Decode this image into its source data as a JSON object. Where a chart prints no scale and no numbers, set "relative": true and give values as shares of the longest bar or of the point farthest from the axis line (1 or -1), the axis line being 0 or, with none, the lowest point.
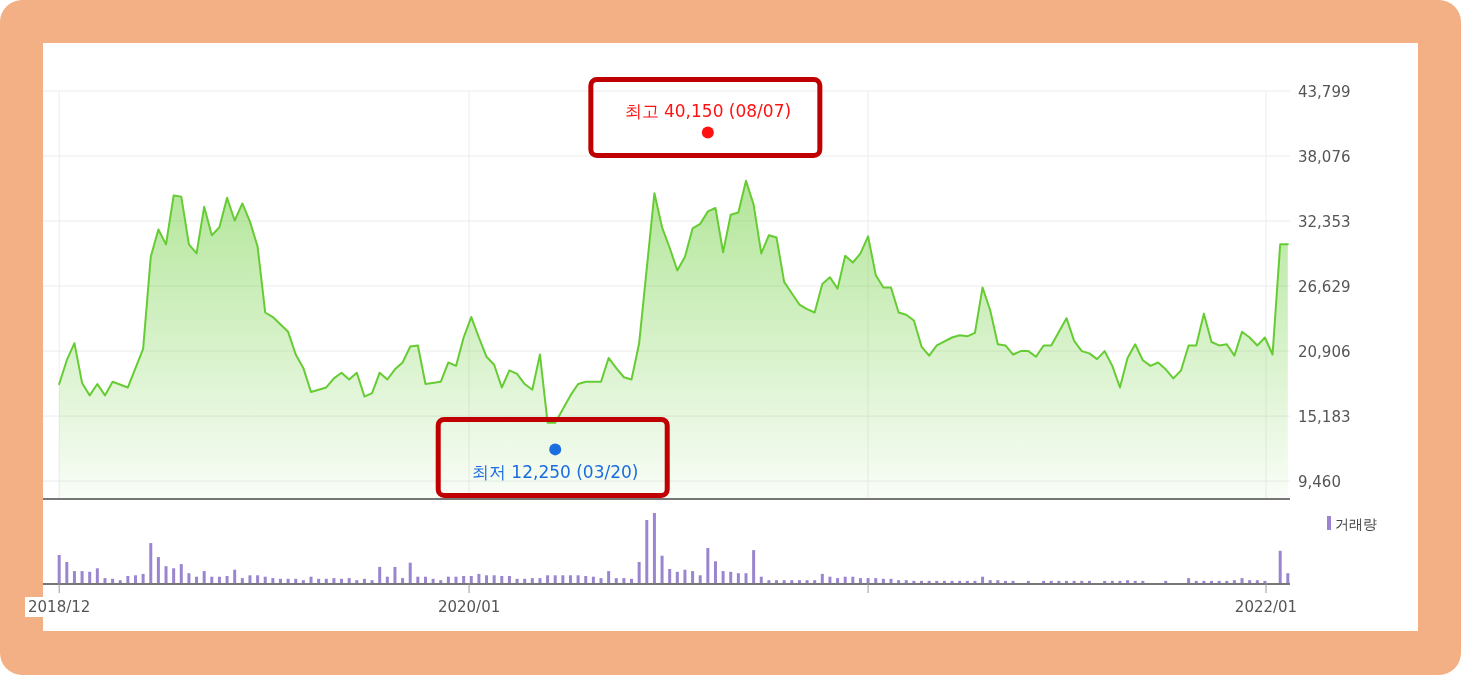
{
  "chart_data": [
    {
      "type": "area",
      "xlim": [
        "2018-12-19",
        "2022-01-23"
      ],
      "xticks": [
        {
          "value": "2018-12-21",
          "label": null
        },
        {
          "value": "2020-01-01",
          "label": null
        },
        {
          "value": "2021-01-01",
          "label": null
        },
        {
          "value": "2022-01-01",
          "label": null
        }
      ],
      "ylim": [
        7970,
        43799
      ],
      "yticks": [
        {
          "value": 9460,
          "label": "9,460"
        },
        {
          "value": 15183,
          "label": "15,183"
        },
        {
          "value": 20906,
          "label": "20,906"
        },
        {
          "value": 26629,
          "label": "26,629"
        },
        {
          "value": 32353,
          "label": "32,353"
        },
        {
          "value": 38076,
          "label": "38,076"
        },
        {
          "value": 43799,
          "label": "43,799"
        }
      ],
      "grid": true,
      "tick_labels": "y",
      "series": [
        {
          "color": "#66cc33",
          "x": [
            "2018-12-21",
            "2018-12-28",
            "2019-01-04",
            "2019-01-11",
            "2019-01-18",
            "2019-01-25",
            "2019-02-01",
            "2019-02-08",
            "2019-02-22",
            "2019-03-08",
            "2019-03-15",
            "2019-03-22",
            "2019-03-29",
            "2019-04-05",
            "2019-04-12",
            "2019-04-19",
            "2019-04-26",
            "2019-05-03",
            "2019-05-10",
            "2019-05-17",
            "2019-05-24",
            "2019-05-31",
            "2019-06-07",
            "2019-06-14",
            "2019-06-21",
            "2019-06-28",
            "2019-07-05",
            "2019-07-19",
            "2019-07-26",
            "2019-08-02",
            "2019-08-09",
            "2019-08-23",
            "2019-08-30",
            "2019-09-06",
            "2019-09-13",
            "2019-09-20",
            "2019-09-27",
            "2019-10-04",
            "2019-10-11",
            "2019-10-18",
            "2019-10-25",
            "2019-11-01",
            "2019-11-08",
            "2019-11-15",
            "2019-11-22",
            "2019-12-06",
            "2019-12-13",
            "2019-12-20",
            "2019-12-27",
            "2020-01-03",
            "2020-01-10",
            "2020-01-17",
            "2020-01-24",
            "2020-01-31",
            "2020-02-07",
            "2020-02-14",
            "2020-02-21",
            "2020-02-28",
            "2020-03-06",
            "2020-03-13",
            "2020-03-20",
            "2020-04-03",
            "2020-04-10",
            "2020-04-17",
            "2020-05-01",
            "2020-05-08",
            "2020-05-15",
            "2020-05-22",
            "2020-05-29",
            "2020-06-05",
            "2020-06-12",
            "2020-06-19",
            "2020-06-26",
            "2020-07-03",
            "2020-07-10",
            "2020-07-17",
            "2020-07-24",
            "2020-07-31",
            "2020-08-07",
            "2020-08-14",
            "2020-08-21",
            "2020-08-28",
            "2020-09-04",
            "2020-09-11",
            "2020-09-18",
            "2020-09-25",
            "2020-10-02",
            "2020-10-09",
            "2020-10-16",
            "2020-10-23",
            "2020-10-30",
            "2020-11-06",
            "2020-11-13",
            "2020-11-20",
            "2020-11-27",
            "2020-12-04",
            "2020-12-11",
            "2020-12-18",
            "2020-12-25",
            "2021-01-01",
            "2021-01-08",
            "2021-01-15",
            "2021-01-22",
            "2021-01-29",
            "2021-02-05",
            "2021-02-12",
            "2021-02-19",
            "2021-02-26",
            "2021-03-05",
            "2021-03-19",
            "2021-03-26",
            "2021-04-02",
            "2021-04-09",
            "2021-04-16",
            "2021-04-23",
            "2021-04-30",
            "2021-05-07",
            "2021-05-14",
            "2021-05-21",
            "2021-05-28",
            "2021-06-04",
            "2021-06-11",
            "2021-06-18",
            "2021-07-02",
            "2021-07-09",
            "2021-07-16",
            "2021-07-23",
            "2021-07-30",
            "2021-08-06",
            "2021-08-13",
            "2021-08-20",
            "2021-08-27",
            "2021-09-03",
            "2021-09-10",
            "2021-09-17",
            "2021-09-24",
            "2021-10-01",
            "2021-10-08",
            "2021-10-15",
            "2021-10-22",
            "2021-10-29",
            "2021-11-05",
            "2021-11-12",
            "2021-11-19",
            "2021-11-26",
            "2021-12-03",
            "2021-12-10",
            "2021-12-17",
            "2021-12-24",
            "2021-12-31",
            "2022-01-07",
            "2022-01-14",
            "2022-01-21"
          ],
          "values": [
            18000,
            20100,
            21600,
            18100,
            17000,
            18000,
            17000,
            18200,
            17700,
            21100,
            29200,
            31600,
            30300,
            34600,
            34500,
            30300,
            29500,
            33600,
            31100,
            31800,
            34400,
            32400,
            33900,
            32300,
            30100,
            24300,
            23900,
            22600,
            20600,
            19400,
            17300,
            17700,
            18500,
            19000,
            18400,
            19000,
            16900,
            17200,
            19000,
            18400,
            19300,
            19900,
            21300,
            21400,
            18000,
            18200,
            19900,
            19600,
            22100,
            23900,
            22100,
            20400,
            19700,
            17700,
            19200,
            18900,
            18000,
            17500,
            20600,
            14600,
            14600,
            17000,
            18000,
            18200,
            18200,
            20300,
            19400,
            18600,
            18400,
            21600,
            28200,
            34800,
            31800,
            30000,
            28000,
            29200,
            31700,
            32100,
            33200,
            33500,
            29600,
            32900,
            33100,
            35900,
            33800,
            29500,
            31100,
            30900,
            27000,
            26000,
            25000,
            24600,
            24300,
            26800,
            27400,
            26400,
            29300,
            28700,
            29500,
            31000,
            27600,
            26500,
            26500,
            24300,
            24100,
            23600,
            21300,
            20500,
            21400,
            22100,
            22300,
            22200,
            22500,
            26500,
            24500,
            21500,
            21400,
            20600,
            20900,
            20900,
            20400,
            21400,
            21400,
            23800,
            21800,
            20900,
            20700,
            20200,
            20900,
            19600,
            17700,
            20300,
            21500,
            20100,
            19600,
            19900,
            19300,
            18500,
            19200,
            21400,
            21400,
            24200,
            21700,
            21400,
            21500,
            20500,
            22600,
            22100,
            21400,
            22100,
            20600,
            30300,
            30300
          ]
        }
      ],
      "annotations": [
        {
          "text": "최고 40,150 (08/07)",
          "x": "2020-08-07",
          "y": 40150
        },
        {
          "text": "최저 12,250 (03/20)",
          "x": "2020-03-20",
          "y": 12250
        }
      ]
    },
    {
      "type": "bar",
      "relative": true,
      "xlim": [
        "2018-12-19",
        "2022-01-23"
      ],
      "xticks": [
        {
          "value": "2018-12-21",
          "label": "2018/12"
        },
        {
          "value": "2020-01-01",
          "label": "2020/01"
        },
        {
          "value": "2021-01-01",
          "label": null
        },
        {
          "value": "2022-01-01",
          "label": "2022/01"
        }
      ],
      "tick_labels": "x",
      "legend": "top right",
      "series": [
        {
          "name": "거래량",
          "color": "#9b85d0",
          "x": [
            "2018-12-21",
            "2018-12-28",
            "2019-01-04",
            "2019-01-11",
            "2019-01-18",
            "2019-01-25",
            "2019-02-01",
            "2019-02-08",
            "2019-02-15",
            "2019-02-22",
            "2019-03-01",
            "2019-03-08",
            "2019-03-15",
            "2019-03-22",
            "2019-03-29",
            "2019-04-05",
            "2019-04-12",
            "2019-04-19",
            "2019-04-26",
            "2019-05-03",
            "2019-05-10",
            "2019-05-17",
            "2019-05-24",
            "2019-05-31",
            "2019-06-07",
            "2019-06-14",
            "2019-06-21",
            "2019-06-28",
            "2019-07-05",
            "2019-07-12",
            "2019-07-19",
            "2019-07-26",
            "2019-08-02",
            "2019-08-09",
            "2019-08-16",
            "2019-08-23",
            "2019-08-30",
            "2019-09-06",
            "2019-09-13",
            "2019-09-20",
            "2019-09-27",
            "2019-10-04",
            "2019-10-11",
            "2019-10-18",
            "2019-10-25",
            "2019-11-01",
            "2019-11-08",
            "2019-11-15",
            "2019-11-22",
            "2019-11-29",
            "2019-12-06",
            "2019-12-13",
            "2019-12-20",
            "2019-12-27",
            "2020-01-03",
            "2020-01-10",
            "2020-01-17",
            "2020-01-24",
            "2020-01-31",
            "2020-02-07",
            "2020-02-14",
            "2020-02-21",
            "2020-02-28",
            "2020-03-06",
            "2020-03-13",
            "2020-03-20",
            "2020-03-27",
            "2020-04-03",
            "2020-04-10",
            "2020-04-17",
            "2020-04-24",
            "2020-05-01",
            "2020-05-08",
            "2020-05-15",
            "2020-05-22",
            "2020-05-29",
            "2020-06-05",
            "2020-06-12",
            "2020-06-19",
            "2020-06-26",
            "2020-07-03",
            "2020-07-10",
            "2020-07-17",
            "2020-07-24",
            "2020-07-31",
            "2020-08-07",
            "2020-08-14",
            "2020-08-21",
            "2020-08-28",
            "2020-09-04",
            "2020-09-11",
            "2020-09-18",
            "2020-09-25",
            "2020-10-02",
            "2020-10-09",
            "2020-10-16",
            "2020-10-23",
            "2020-10-30",
            "2020-11-06",
            "2020-11-13",
            "2020-11-20",
            "2020-11-27",
            "2020-12-04",
            "2020-12-11",
            "2020-12-18",
            "2020-12-25",
            "2021-01-01",
            "2021-01-08",
            "2021-01-15",
            "2021-01-22",
            "2021-01-29",
            "2021-02-05",
            "2021-02-12",
            "2021-02-19",
            "2021-02-26",
            "2021-03-05",
            "2021-03-12",
            "2021-03-19",
            "2021-03-26",
            "2021-04-02",
            "2021-04-09",
            "2021-04-16",
            "2021-04-23",
            "2021-04-30",
            "2021-05-07",
            "2021-05-14",
            "2021-05-28",
            "2021-06-11",
            "2021-06-18",
            "2021-06-25",
            "2021-07-02",
            "2021-07-09",
            "2021-07-16",
            "2021-07-23",
            "2021-08-06",
            "2021-08-13",
            "2021-08-20",
            "2021-08-27",
            "2021-09-03",
            "2021-09-10",
            "2021-10-01",
            "2021-10-22",
            "2021-10-29",
            "2021-11-05",
            "2021-11-12",
            "2021-11-19",
            "2021-11-26",
            "2021-12-03",
            "2021-12-10",
            "2021-12-17",
            "2021-12-24",
            "2021-12-31",
            "2022-01-14",
            "2022-01-21"
          ],
          "values": [
            0.4,
            0.3,
            0.17,
            0.17,
            0.16,
            0.21,
            0.07,
            0.06,
            0.04,
            0.1,
            0.11,
            0.13,
            0.57,
            0.37,
            0.24,
            0.21,
            0.27,
            0.14,
            0.09,
            0.17,
            0.09,
            0.09,
            0.1,
            0.19,
            0.07,
            0.11,
            0.11,
            0.09,
            0.07,
            0.06,
            0.06,
            0.06,
            0.04,
            0.09,
            0.06,
            0.06,
            0.07,
            0.06,
            0.07,
            0.04,
            0.06,
            0.04,
            0.23,
            0.09,
            0.23,
            0.07,
            0.29,
            0.09,
            0.09,
            0.06,
            0.04,
            0.09,
            0.09,
            0.1,
            0.1,
            0.13,
            0.11,
            0.11,
            0.1,
            0.1,
            0.06,
            0.06,
            0.07,
            0.07,
            0.11,
            0.11,
            0.11,
            0.11,
            0.11,
            0.1,
            0.09,
            0.07,
            0.17,
            0.07,
            0.07,
            0.06,
            0.3,
            0.9,
            1,
            0.39,
            0.2,
            0.16,
            0.19,
            0.17,
            0.11,
            0.5,
            0.31,
            0.17,
            0.16,
            0.14,
            0.14,
            0.47,
            0.09,
            0.04,
            0.04,
            0.04,
            0.04,
            0.04,
            0.04,
            0.04,
            0.13,
            0.09,
            0.07,
            0.09,
            0.09,
            0.07,
            0.07,
            0.07,
            0.06,
            0.06,
            0.04,
            0.04,
            0.03,
            0.03,
            0.03,
            0.03,
            0.03,
            0.03,
            0.03,
            0.03,
            0.03,
            0.09,
            0.04,
            0.04,
            0.03,
            0.03,
            0.03,
            0.03,
            0.03,
            0.03,
            0.03,
            0.03,
            0.03,
            0.03,
            0.03,
            0.03,
            0.03,
            0.04,
            0.03,
            0.03,
            0.03,
            0.07,
            0.03,
            0.03,
            0.03,
            0.03,
            0.03,
            0.04,
            0.07,
            0.04,
            0.04,
            0.03,
            0.46,
            0.14
          ]
        }
      ]
    }
  ]
}
